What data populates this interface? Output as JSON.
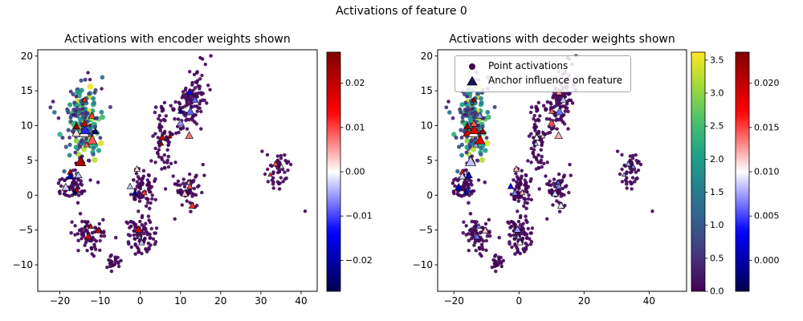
{
  "figure": {
    "background": "#ffffff"
  },
  "chart_data": {
    "type": "scatter",
    "suptitle": "Activations of feature 0",
    "legend": {
      "position": "upper left of right subplot",
      "items": [
        {
          "label": "Point activations",
          "marker": "circle",
          "color": "#440154"
        },
        {
          "label": "Anchor influence on feature",
          "marker": "triangle",
          "color": "#16165c"
        }
      ]
    },
    "subplots": [
      {
        "title": "Activations with encoder weights shown",
        "xlim": [
          -25.5,
          44
        ],
        "ylim": [
          -13.8,
          20.9
        ],
        "xticks": [
          -20,
          -10,
          0,
          10,
          20,
          30,
          40
        ],
        "yticks": [
          -10,
          -5,
          0,
          5,
          10,
          15,
          20
        ],
        "grid": false,
        "anchor_value": "enc",
        "anchor_cbar": 0,
        "colorbars": [
          {
            "name": "encoder-weight-colorbar",
            "cmap": "seismic",
            "vmin": -0.027,
            "vmax": 0.027,
            "ticks": [
              -0.02,
              -0.01,
              0,
              0.01,
              0.02
            ],
            "decimals": 2
          }
        ]
      },
      {
        "title": "Activations with decoder weights shown",
        "xlim": [
          -25,
          51.5
        ],
        "ylim": [
          -13.8,
          20.9
        ],
        "xticks": [
          -20,
          0,
          20,
          40
        ],
        "yticks": [
          -10,
          -5,
          0,
          5,
          10,
          15,
          20
        ],
        "grid": false,
        "anchor_value": "dec",
        "anchor_cbar": 1,
        "colorbars": [
          {
            "name": "activation-colorbar",
            "cmap": "viridis",
            "vmin": 0,
            "vmax": 3.62,
            "ticks": [
              0,
              0.5,
              1,
              1.5,
              2,
              2.5,
              3,
              3.5
            ],
            "decimals": 1
          },
          {
            "name": "decoder-weight-colorbar",
            "cmap": "seismic",
            "vmin": -0.0035,
            "vmax": 0.0235,
            "ticks": [
              0,
              0.005,
              0.01,
              0.015,
              0.02
            ],
            "decimals": 3
          }
        ]
      }
    ],
    "points": {
      "marker": "circle",
      "value_label": "activation",
      "vmin": 0,
      "vmax": 3.62,
      "clusters": [
        {
          "n": 70,
          "cx": -13.6,
          "cy": 10.3,
          "sx": 1.3,
          "sy": 1.9,
          "rho": 0,
          "amin": 1.6,
          "amax": 3.62
        },
        {
          "n": 90,
          "cx": -14.3,
          "cy": 10.0,
          "sx": 2.1,
          "sy": 2.6,
          "rho": 0,
          "amin": 0.4,
          "amax": 2.6
        },
        {
          "n": 50,
          "cx": -14.6,
          "cy": 10.6,
          "sx": 2.7,
          "sy": 3.1,
          "rho": 0,
          "amin": 0.05,
          "amax": 1.1
        },
        {
          "n": 60,
          "cx": -16.8,
          "cy": 1.4,
          "sx": 1.9,
          "sy": 1.2,
          "rho": 0,
          "amin": 0,
          "amax": 0.18
        },
        {
          "n": 70,
          "cx": -12.6,
          "cy": -6.0,
          "sx": 1.8,
          "sy": 1.3,
          "rho": 0,
          "amin": 0,
          "amax": 0.15
        },
        {
          "n": 22,
          "cx": -6.6,
          "cy": -9.6,
          "sx": 1.1,
          "sy": 0.9,
          "rho": 0,
          "amin": 0,
          "amax": 0.12
        },
        {
          "n": 85,
          "cx": 0.3,
          "cy": -5.6,
          "sx": 1.9,
          "sy": 1.4,
          "rho": 0,
          "amin": 0,
          "amax": 0.15
        },
        {
          "n": 70,
          "cx": 0.8,
          "cy": 1.0,
          "sx": 1.9,
          "sy": 1.3,
          "rho": 0,
          "amin": 0,
          "amax": 0.15
        },
        {
          "n": 65,
          "cx": 5.6,
          "cy": 8.3,
          "sx": 1.1,
          "sy": 2.5,
          "rho": 0,
          "amin": 0,
          "amax": 0.15
        },
        {
          "n": 115,
          "cx": 12.2,
          "cy": 13.3,
          "sx": 2.2,
          "sy": 2.6,
          "rho": 0.6,
          "amin": 0,
          "amax": 0.15
        },
        {
          "n": 60,
          "cx": 12.0,
          "cy": 1.0,
          "sx": 1.7,
          "sy": 1.2,
          "rho": 0,
          "amin": 0,
          "amax": 0.15
        },
        {
          "n": 48,
          "cx": 34.3,
          "cy": 3.6,
          "sx": 1.9,
          "sy": 1.3,
          "rho": 0,
          "amin": 0,
          "amax": 0.12
        }
      ],
      "extra": [
        [
          16.2,
          18.8,
          0.05
        ],
        [
          41.0,
          -2.3,
          0.05
        ],
        [
          -13.0,
          17.6,
          0.1
        ],
        [
          -9.6,
          15.3,
          0.1
        ],
        [
          30.3,
          6.3,
          0.05
        ],
        [
          8.6,
          -3.4,
          0.05
        ],
        [
          15.6,
          4.4,
          0.05
        ]
      ]
    },
    "anchors": {
      "marker": "triangle",
      "value_labels": {
        "enc": "encoder weight",
        "dec": "decoder weight"
      },
      "clusters": [
        {
          "n": 13,
          "cx": -13.8,
          "cy": 9.6,
          "sx": 2.0,
          "sy": 2.6,
          "enc": [
            -0.027,
            0.027
          ],
          "dec": [
            0.006,
            0.0235
          ],
          "smin": 6,
          "smax": 12
        },
        {
          "n": 5,
          "cx": -16.6,
          "cy": 1.6,
          "sx": 1.6,
          "sy": 1.0,
          "enc": [
            -0.026,
            0.02
          ],
          "dec": [
            0.0,
            0.011
          ],
          "smin": 5,
          "smax": 9
        },
        {
          "n": 4,
          "cx": -12.4,
          "cy": -5.8,
          "sx": 1.5,
          "sy": 1.1,
          "enc": [
            -0.02,
            0.026
          ],
          "dec": [
            0.004,
            0.013
          ],
          "smin": 5,
          "smax": 8
        },
        {
          "n": 4,
          "cx": 0.4,
          "cy": -5.2,
          "sx": 1.5,
          "sy": 1.0,
          "enc": [
            -0.012,
            0.026
          ],
          "dec": [
            0.005,
            0.013
          ],
          "smin": 5,
          "smax": 8
        },
        {
          "n": 4,
          "cx": 0.9,
          "cy": 1.1,
          "sx": 1.5,
          "sy": 1.0,
          "enc": [
            -0.024,
            0.022
          ],
          "dec": [
            0.003,
            0.012
          ],
          "smin": 5,
          "smax": 8
        },
        {
          "n": 3,
          "cx": 5.6,
          "cy": 7.2,
          "sx": 0.9,
          "sy": 1.6,
          "enc": [
            0.004,
            0.026
          ],
          "dec": [
            0.006,
            0.014
          ],
          "smin": 5,
          "smax": 8
        },
        {
          "n": 6,
          "cx": 12.2,
          "cy": 12.4,
          "sx": 1.8,
          "sy": 1.9,
          "enc": [
            -0.022,
            0.027
          ],
          "dec": [
            0.006,
            0.015
          ],
          "smin": 5,
          "smax": 10
        },
        {
          "n": 4,
          "cx": 11.8,
          "cy": 1.0,
          "sx": 1.4,
          "sy": 1.0,
          "enc": [
            -0.025,
            0.02
          ],
          "dec": [
            0.004,
            0.012
          ],
          "smin": 5,
          "smax": 8
        },
        {
          "n": 3,
          "cx": 34.4,
          "cy": 3.8,
          "sx": 1.4,
          "sy": 0.8,
          "enc": [
            -0.006,
            0.013
          ],
          "dec": [
            0.006,
            0.011
          ],
          "smin": 4,
          "smax": 7
        }
      ]
    },
    "colormaps": {
      "viridis": {
        "stops": [
          "#440154",
          "#46327e",
          "#365c8d",
          "#277f8e",
          "#1fa187",
          "#4ac16d",
          "#a0da39",
          "#fde725"
        ]
      },
      "seismic": {
        "stops": [
          "#00004c",
          "#0000ff",
          "#ffffff",
          "#ff0000",
          "#7f0000"
        ],
        "pos": [
          0,
          0.25,
          0.5,
          0.75,
          1
        ]
      }
    }
  }
}
